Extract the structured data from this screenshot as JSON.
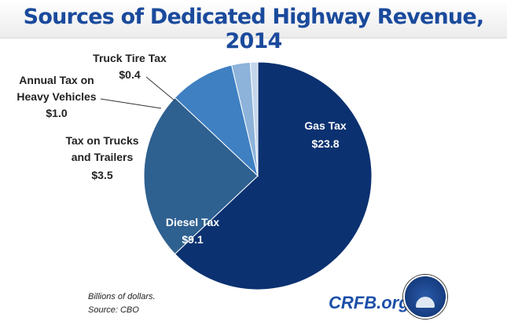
{
  "chart_data": {
    "type": "pie",
    "title": "Sources of Dedicated Highway Revenue, 2014",
    "unit_note": "Billions of dollars.",
    "source": "Source:  CBO",
    "slices": [
      {
        "name": "Gas Tax",
        "value": 23.8,
        "label": "$23.8",
        "color": "#0b3170"
      },
      {
        "name": "Diesel Tax",
        "value": 9.1,
        "label": "$9.1",
        "color": "#2e6090"
      },
      {
        "name": "Tax on Trucks and Trailers",
        "value": 3.5,
        "label": "$3.5",
        "color": "#3f80c2"
      },
      {
        "name": "Annual Tax on Heavy Vehicles",
        "value": 1.0,
        "label": "$1.0",
        "color": "#8db3da"
      },
      {
        "name": "Truck Tire Tax",
        "value": 0.4,
        "label": "$0.4",
        "color": "#c4d6eb"
      }
    ]
  },
  "brand": "CRFB.org"
}
